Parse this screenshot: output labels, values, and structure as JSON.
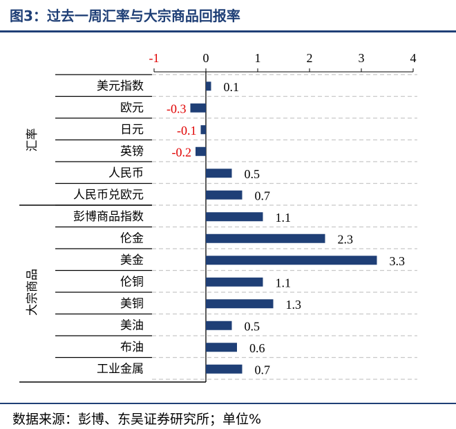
{
  "figure": {
    "title": "图3：过去一周汇率与大宗商品回报率",
    "source": "数据来源：彭博、东吴证券研究所；单位%"
  },
  "colors": {
    "bar": "#1f3f76",
    "negative_label": "#e00000",
    "title": "#1f3f76",
    "grid": "#c8c8c8"
  },
  "chart_data": {
    "type": "bar",
    "orientation": "horizontal",
    "title": "图3：过去一周汇率与大宗商品回报率",
    "unit": "%",
    "xlim": [
      -1,
      4
    ],
    "xticks": [
      -1,
      0,
      1,
      2,
      3,
      4
    ],
    "x_axis_position": "top",
    "grid": "dashed horizontal row separators",
    "groups": [
      {
        "name": "汇率",
        "start": 0,
        "end": 5
      },
      {
        "name": "大宗商品",
        "start": 6,
        "end": 13
      }
    ],
    "categories": [
      "美元指数",
      "欧元",
      "日元",
      "英镑",
      "人民币",
      "人民币兑欧元",
      "彭博商品指数",
      "伦金",
      "美金",
      "伦铜",
      "美铜",
      "美油",
      "布油",
      "工业金属"
    ],
    "values": [
      0.1,
      -0.3,
      -0.1,
      -0.2,
      0.5,
      0.7,
      1.1,
      2.3,
      3.3,
      1.1,
      1.3,
      0.5,
      0.6,
      0.7
    ],
    "value_labels": [
      "0.1",
      "-0.3",
      "-0.1",
      "-0.2",
      "0.5",
      "0.7",
      "1.1",
      "2.3",
      "3.3",
      "1.1",
      "1.3",
      "0.5",
      "0.6",
      "0.7"
    ]
  }
}
